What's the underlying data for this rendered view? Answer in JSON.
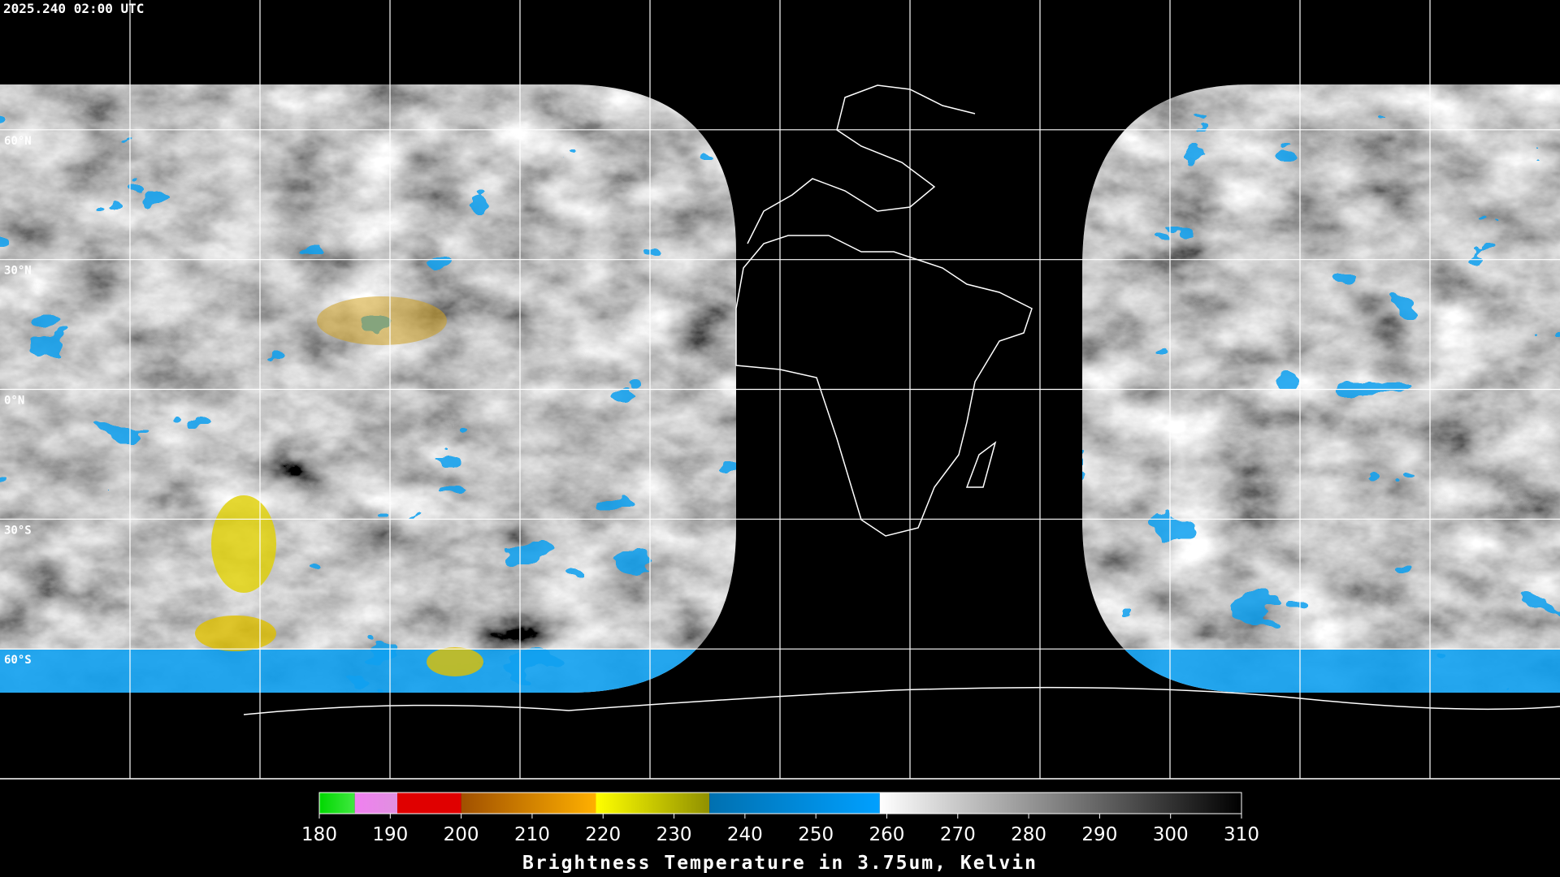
{
  "header": {
    "title": "2025.240 02:00 UTC"
  },
  "map": {
    "lonlim": [
      -180,
      180
    ],
    "latlim": [
      -90,
      90
    ],
    "lon_lines": [
      -150,
      -120,
      -90,
      -60,
      -30,
      0,
      30,
      60,
      90,
      120,
      150
    ],
    "lat_lines": [
      {
        "value": 60,
        "label": "60°N"
      },
      {
        "value": 30,
        "label": "30°N"
      },
      {
        "value": 0,
        "label": "0°N"
      },
      {
        "value": -30,
        "label": "30°S"
      },
      {
        "value": -60,
        "label": "60°S"
      }
    ],
    "grid_color": "#ffffff"
  },
  "colorbar": {
    "lim": [
      180,
      310
    ],
    "ticks": [
      180,
      190,
      200,
      210,
      220,
      230,
      240,
      250,
      260,
      270,
      280,
      290,
      300,
      310
    ],
    "segments": [
      {
        "from": 180,
        "to": 185,
        "colors": [
          "#00d800",
          "#40e840"
        ]
      },
      {
        "from": 185,
        "to": 191,
        "colors": [
          "#f080f0",
          "#e090e0"
        ]
      },
      {
        "from": 191,
        "to": 200,
        "colors": [
          "#e00000",
          "#e00000"
        ]
      },
      {
        "from": 200,
        "to": 219,
        "colors": [
          "#a05000",
          "#ffb000"
        ]
      },
      {
        "from": 219,
        "to": 235,
        "colors": [
          "#ffff00",
          "#909000"
        ]
      },
      {
        "from": 235,
        "to": 259,
        "colors": [
          "#0070b0",
          "#00a0ff"
        ]
      },
      {
        "from": 259,
        "to": 310,
        "colors": [
          "#ffffff",
          "#000000"
        ]
      }
    ],
    "label": "Brightness Temperature in 3.75um, Kelvin"
  }
}
